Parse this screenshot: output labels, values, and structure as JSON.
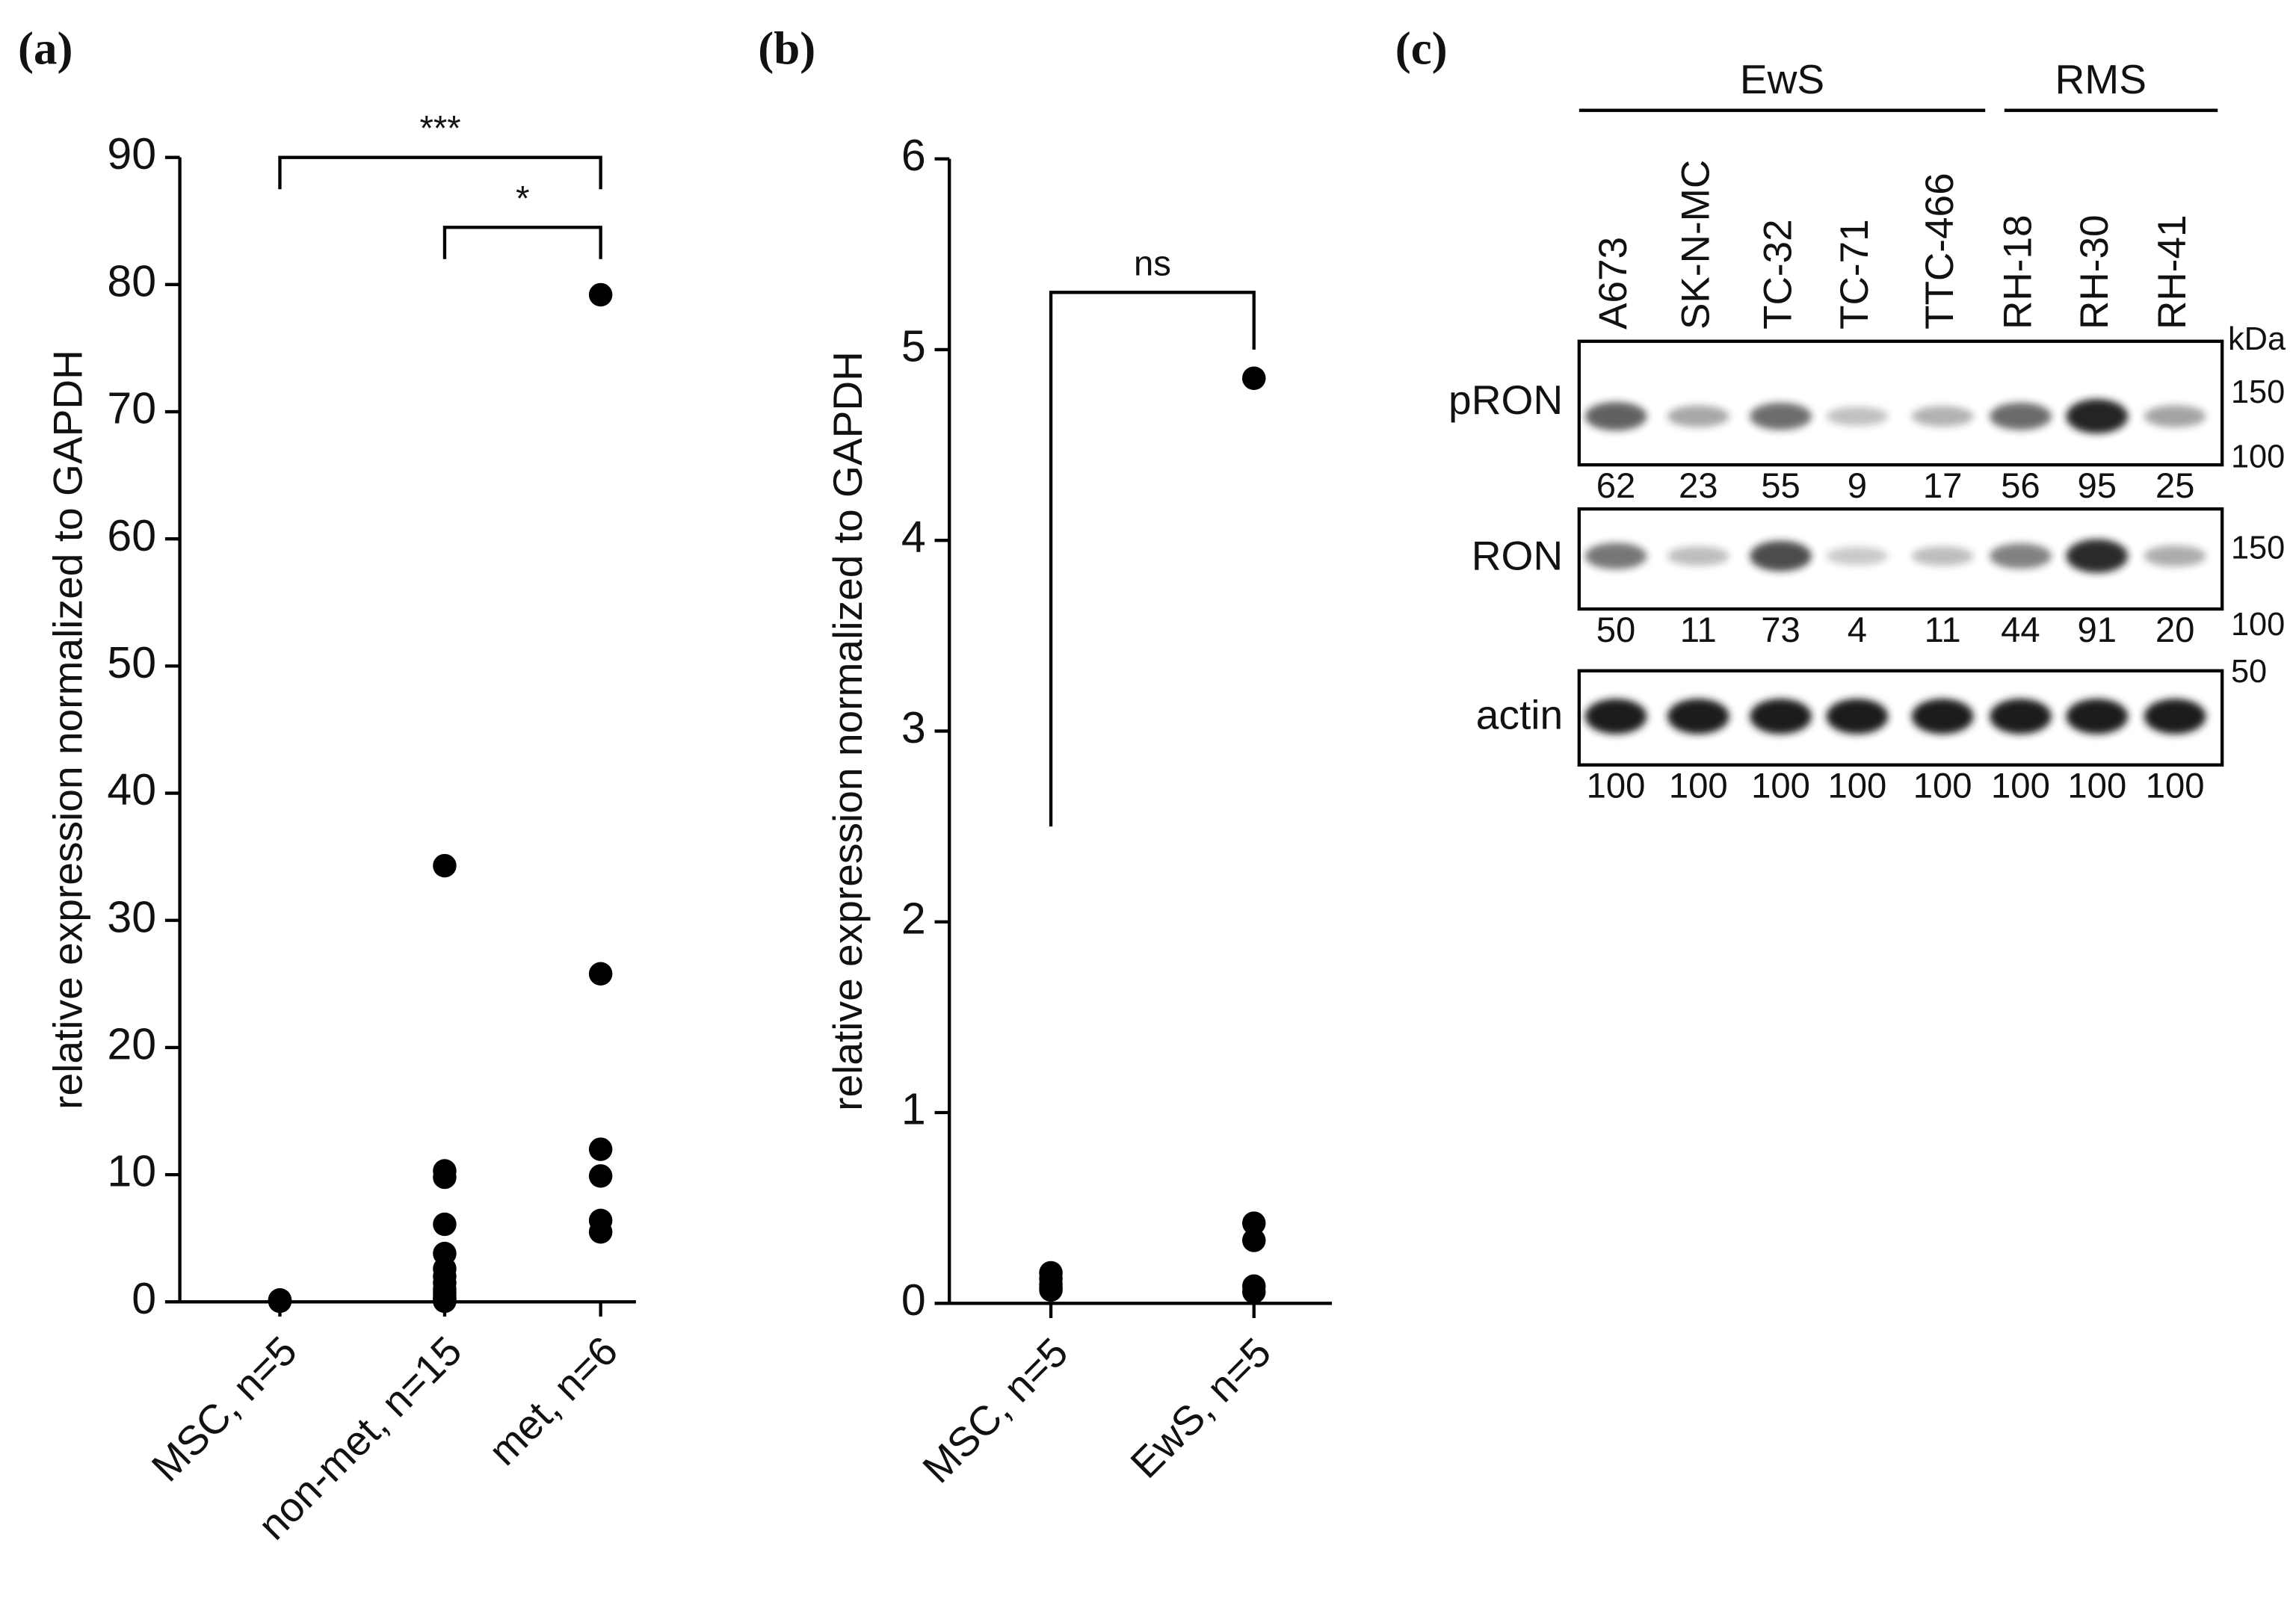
{
  "chart_data": [
    {
      "type": "strip",
      "panel": "(a)",
      "ylabel": "relative expression normalized to GAPDH",
      "categories": [
        "MSC, n=5",
        "non-met, n=15",
        "met, n=6"
      ],
      "values": [
        [
          0.15,
          0.12,
          0.1,
          0.08,
          0.05
        ],
        [
          34.3,
          10.3,
          9.8,
          6.1,
          3.8,
          2.6,
          2.0,
          1.5,
          1.0,
          0.7,
          0.5,
          0.3,
          0.2,
          0.1,
          0.05
        ],
        [
          79.2,
          25.8,
          12.0,
          9.9,
          6.4,
          5.5
        ]
      ],
      "color": "#000000",
      "ylim": [
        0,
        90
      ],
      "yticks": [
        0,
        10,
        20,
        30,
        40,
        50,
        60,
        70,
        80,
        90
      ],
      "annotations": [
        {
          "label": "***",
          "from": 0,
          "to": 2,
          "y": 90,
          "ends": [
            87.5,
            87.5
          ]
        },
        {
          "label": "*",
          "from": 1,
          "to": 2,
          "y": 84.5,
          "ends": [
            82,
            82
          ]
        }
      ]
    },
    {
      "type": "strip",
      "panel": "(b)",
      "ylabel": "relative expression normalized to GAPDH",
      "categories": [
        "MSC, n=5",
        "EwS, n=5"
      ],
      "values": [
        [
          0.16,
          0.13,
          0.1,
          0.08,
          0.07
        ],
        [
          4.85,
          0.42,
          0.33,
          0.09,
          0.06
        ]
      ],
      "color": "#000000",
      "ylim": [
        0,
        6
      ],
      "yticks": [
        0,
        1,
        2,
        3,
        4,
        5,
        6
      ],
      "annotations": [
        {
          "label": "ns",
          "from": 0,
          "to": 1,
          "y": 5.3,
          "ends": [
            2.5,
            5.0
          ]
        }
      ]
    }
  ],
  "blot": {
    "panel": "(c)",
    "groups": [
      {
        "label": "EwS",
        "from": 0,
        "to": 4
      },
      {
        "label": "RMS",
        "from": 5,
        "to": 7
      }
    ],
    "lanes": [
      "A673",
      "SK-N-MC",
      "TC-32",
      "TC-71",
      "TTC-466",
      "RH-18",
      "RH-30",
      "RH-41"
    ],
    "unit": "kDa",
    "rows": [
      {
        "label": "pRON",
        "markers": [
          "150",
          "100"
        ],
        "quant": [
          62,
          23,
          55,
          9,
          17,
          56,
          95,
          25
        ]
      },
      {
        "label": "RON",
        "markers": [
          "150",
          "100"
        ],
        "quant": [
          50,
          11,
          73,
          4,
          11,
          44,
          91,
          20
        ]
      },
      {
        "label": "actin",
        "markers": [
          "50"
        ],
        "quant": [
          100,
          100,
          100,
          100,
          100,
          100,
          100,
          100
        ]
      }
    ]
  }
}
